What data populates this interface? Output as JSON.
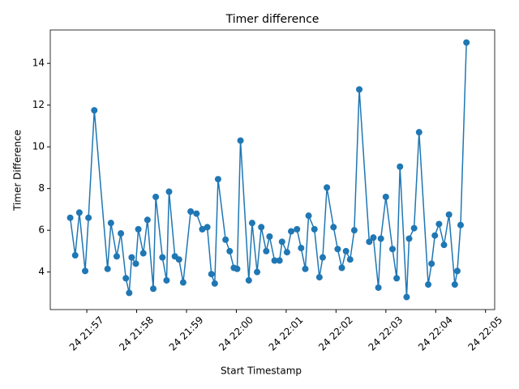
{
  "chart_data": {
    "type": "line",
    "title": "Timer difference",
    "x_label": "Start Timestamp",
    "y_label": "Timer Difference",
    "x": [
      "24 21:56:40",
      "24 21:56:46",
      "24 21:56:51",
      "24 21:56:58",
      "24 21:57:02",
      "24 21:57:09",
      "24 21:57:25",
      "24 21:57:29",
      "24 21:57:36",
      "24 21:57:41",
      "24 21:57:47",
      "24 21:57:51",
      "24 21:57:54",
      "24 21:57:59",
      "24 21:58:02",
      "24 21:58:08",
      "24 21:58:13",
      "24 21:58:20",
      "24 21:58:23",
      "24 21:58:31",
      "24 21:58:36",
      "24 21:58:39",
      "24 21:58:46",
      "24 21:58:51",
      "24 21:58:56",
      "24 21:59:05",
      "24 21:59:12",
      "24 21:59:19",
      "24 21:59:25",
      "24 21:59:30",
      "24 21:59:34",
      "24 21:59:38",
      "24 21:59:47",
      "24 21:59:52",
      "24 21:59:57",
      "24 22:00:01",
      "24 22:00:05",
      "24 22:00:15",
      "24 22:00:19",
      "24 22:00:25",
      "24 22:00:30",
      "24 22:00:36",
      "24 22:00:40",
      "24 22:00:46",
      "24 22:00:52",
      "24 22:00:55",
      "24 22:01:01",
      "24 22:01:06",
      "24 22:01:13",
      "24 22:01:18",
      "24 22:01:23",
      "24 22:01:27",
      "24 22:01:34",
      "24 22:01:40",
      "24 22:01:44",
      "24 22:01:49",
      "24 22:01:57",
      "24 22:02:02",
      "24 22:02:07",
      "24 22:02:12",
      "24 22:02:17",
      "24 22:02:22",
      "24 22:02:28",
      "24 22:02:40",
      "24 22:02:45",
      "24 22:02:51",
      "24 22:02:54",
      "24 22:03:00",
      "24 22:03:08",
      "24 22:03:13",
      "24 22:03:17",
      "24 22:03:25",
      "24 22:03:28",
      "24 22:03:34",
      "24 22:03:40",
      "24 22:03:51",
      "24 22:03:55",
      "24 22:03:59",
      "24 22:04:04",
      "24 22:04:10",
      "24 22:04:16",
      "24 22:04:23",
      "24 22:04:26",
      "24 22:04:30",
      "24 22:04:37"
    ],
    "series": [
      {
        "color": "#1f77b4",
        "values": [
          6.6,
          4.8,
          6.85,
          4.05,
          6.6,
          11.75,
          4.15,
          6.35,
          4.75,
          5.85,
          3.7,
          3.0,
          4.7,
          4.4,
          6.05,
          4.9,
          6.5,
          3.2,
          7.6,
          4.7,
          3.6,
          7.85,
          4.75,
          4.6,
          3.5,
          6.9,
          6.8,
          6.05,
          6.15,
          3.9,
          3.45,
          8.45,
          5.55,
          5.0,
          4.2,
          4.15,
          10.3,
          3.6,
          6.35,
          4.0,
          6.15,
          5.0,
          5.7,
          4.55,
          4.55,
          5.45,
          4.95,
          5.95,
          6.05,
          5.15,
          4.15,
          6.7,
          6.05,
          3.75,
          4.7,
          8.05,
          6.15,
          5.1,
          4.2,
          5.0,
          4.6,
          6.0,
          12.75,
          5.45,
          5.65,
          3.25,
          5.6,
          7.6,
          5.1,
          3.7,
          9.05,
          2.8,
          5.6,
          6.1,
          10.7,
          3.4,
          4.4,
          5.75,
          6.3,
          5.3,
          6.75,
          3.4,
          4.05,
          6.25,
          15.0
        ]
      }
    ],
    "xlim": [
      "24 21:56:16",
      "24 22:05:11"
    ],
    "xticks": [
      "24 21:57",
      "24 21:58",
      "24 21:59",
      "24 22:00",
      "24 22:01",
      "24 22:02",
      "24 22:03",
      "24 22:04",
      "24 22:05"
    ],
    "ylim": [
      2.2,
      15.6
    ],
    "yticks": [
      4,
      6,
      8,
      10,
      12,
      14
    ]
  }
}
